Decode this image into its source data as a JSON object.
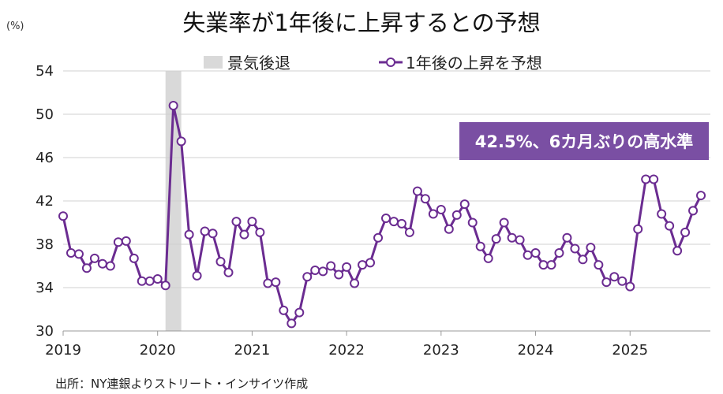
{
  "title": "失業率が1年後に上昇するとの予想",
  "unit_label": "(%)",
  "source": "出所：NY連銀よりストリート・インサイツ作成",
  "legend": {
    "recession": "景気後退",
    "series": "1年後の上昇を予想"
  },
  "callout": "42.5%、6カ月ぶりの高水準",
  "colors": {
    "line": "#6b2c91",
    "recession": "#d9d9d9",
    "callout_bg": "#7a4fa3",
    "grid": "#d0d0d0"
  },
  "chart_data": {
    "type": "line",
    "title": "失業率が1年後に上昇するとの予想",
    "ylabel": "(%)",
    "ylim": [
      30,
      54
    ],
    "yticks": [
      30,
      34,
      38,
      42,
      46,
      50,
      54
    ],
    "xticks": [
      "2019",
      "2020",
      "2021",
      "2022",
      "2023",
      "2024",
      "2025"
    ],
    "grid": "horizontal",
    "legend_position": "top-center",
    "recession_shading": [
      {
        "label": "景気後退",
        "start": "2020-02",
        "end": "2020-04"
      }
    ],
    "series": [
      {
        "name": "1年後の上昇を予想",
        "x": [
          "2019-01",
          "2019-02",
          "2019-03",
          "2019-04",
          "2019-05",
          "2019-06",
          "2019-07",
          "2019-08",
          "2019-09",
          "2019-10",
          "2019-11",
          "2019-12",
          "2020-01",
          "2020-02",
          "2020-03",
          "2020-04",
          "2020-05",
          "2020-06",
          "2020-07",
          "2020-08",
          "2020-09",
          "2020-10",
          "2020-11",
          "2020-12",
          "2021-01",
          "2021-02",
          "2021-03",
          "2021-04",
          "2021-05",
          "2021-06",
          "2021-07",
          "2021-08",
          "2021-09",
          "2021-10",
          "2021-11",
          "2021-12",
          "2022-01",
          "2022-02",
          "2022-03",
          "2022-04",
          "2022-05",
          "2022-06",
          "2022-07",
          "2022-08",
          "2022-09",
          "2022-10",
          "2022-11",
          "2022-12",
          "2023-01",
          "2023-02",
          "2023-03",
          "2023-04",
          "2023-05",
          "2023-06",
          "2023-07",
          "2023-08",
          "2023-09",
          "2023-10",
          "2023-11",
          "2023-12",
          "2024-01",
          "2024-02",
          "2024-03",
          "2024-04",
          "2024-05",
          "2024-06",
          "2024-07",
          "2024-08",
          "2024-09",
          "2024-10",
          "2024-11",
          "2024-12",
          "2025-01",
          "2025-02",
          "2025-03",
          "2025-04",
          "2025-05",
          "2025-06",
          "2025-07",
          "2025-08",
          "2025-09",
          "2025-10"
        ],
        "values": [
          40.6,
          37.2,
          37.1,
          35.8,
          36.7,
          36.2,
          36.0,
          38.2,
          38.3,
          36.7,
          34.6,
          34.6,
          34.8,
          34.2,
          50.8,
          47.5,
          38.9,
          35.1,
          39.2,
          39.0,
          36.4,
          35.4,
          40.1,
          38.9,
          40.1,
          39.1,
          34.4,
          34.5,
          31.9,
          30.7,
          31.7,
          35.0,
          35.6,
          35.5,
          36.0,
          35.2,
          35.9,
          34.4,
          36.1,
          36.3,
          38.6,
          40.4,
          40.1,
          39.9,
          39.1,
          42.9,
          42.2,
          40.8,
          41.2,
          39.4,
          40.7,
          41.7,
          40.0,
          37.8,
          36.7,
          38.5,
          40.0,
          38.6,
          38.4,
          37.0,
          37.2,
          36.1,
          36.1,
          37.2,
          38.6,
          37.6,
          36.6,
          37.7,
          36.1,
          34.5,
          35.0,
          34.6,
          34.1,
          39.4,
          44.0,
          44.0,
          40.8,
          39.7,
          37.4,
          39.1,
          41.1,
          42.5
        ]
      }
    ]
  }
}
